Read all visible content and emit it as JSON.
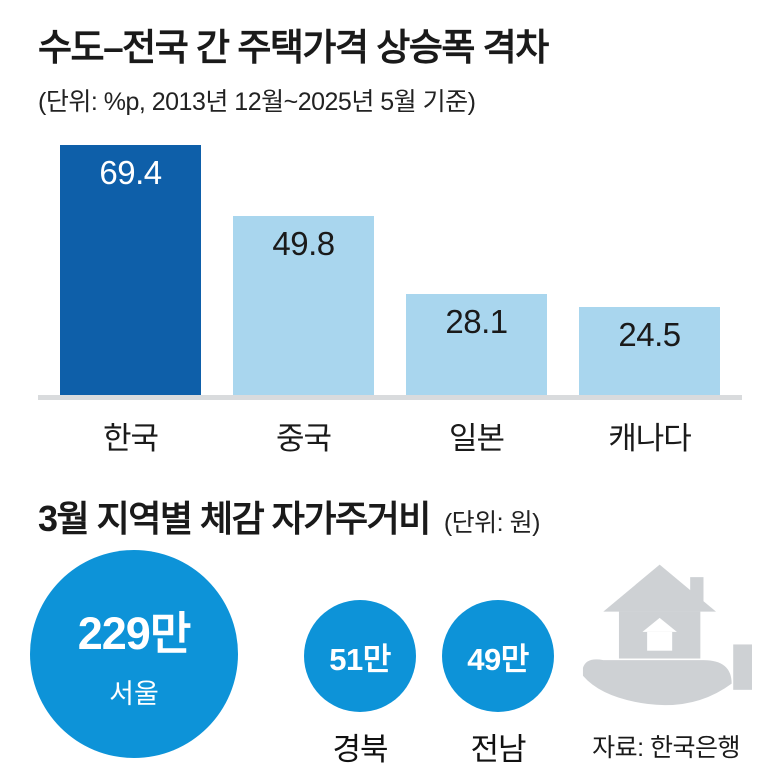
{
  "colors": {
    "highlight_bar": "#0e5fa9",
    "bar": "#a9d6ee",
    "bubble": "#0d93d8",
    "baseline": "#d9dbdd",
    "icon_gray": "#ced1d4",
    "text": "#1a1a1a"
  },
  "bar_chart": {
    "title": "수도–전국 간 주택가격 상승폭 격차",
    "subtitle": "(단위: %p, 2013년 12월~2025년 5월 기준)"
  },
  "bubble_chart": {
    "title": "3월 지역별 체감 자가주거비",
    "unit": "(단위: 원)"
  },
  "source": "자료: 한국은행",
  "chart_data": [
    {
      "type": "bar",
      "title": "수도–전국 간 주택가격 상승폭 격차",
      "unit": "%p",
      "period": "2013년 12월~2025년 5월 기준",
      "categories": [
        "한국",
        "중국",
        "일본",
        "캐나다"
      ],
      "values": [
        69.4,
        49.8,
        28.1,
        24.5
      ],
      "highlight_index": 0,
      "ylim": [
        0,
        70
      ],
      "grid": false,
      "value_labels": [
        "69.4",
        "49.8",
        "28.1",
        "24.5"
      ]
    },
    {
      "type": "bubble",
      "title": "3월 지역별 체감 자가주거비",
      "unit": "원",
      "categories": [
        "서울",
        "경북",
        "전남"
      ],
      "labels": [
        "229만",
        "51만",
        "49만"
      ],
      "values": [
        2290000,
        510000,
        490000
      ]
    }
  ]
}
